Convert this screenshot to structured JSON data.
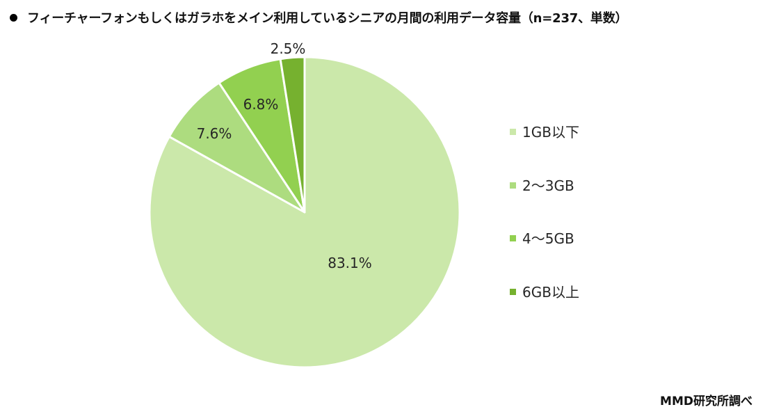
{
  "title": "フィーチャーフォンもしくはガラホをメイン利用しているシニアの月間の利用データ容量（n=237、単数）",
  "source": "MMD研究所調べ",
  "chart_data": {
    "type": "pie",
    "title": "フィーチャーフォンもしくはガラホをメイン利用しているシニアの月間の利用データ容量（n=237、単数）",
    "n": 237,
    "categories": [
      "1GB以下",
      "2〜3GB",
      "4〜5GB",
      "6GB以上"
    ],
    "values": [
      83.1,
      7.6,
      6.8,
      2.5
    ],
    "labels": [
      "83.1%",
      "7.6%",
      "6.8%",
      "2.5%"
    ],
    "colors": [
      "#CBE8AA",
      "#ADDC7F",
      "#92D050",
      "#76B12F"
    ],
    "start_angle": "12 o'clock, clockwise",
    "legend_position": "right"
  },
  "legend": [
    {
      "label": "1GB以下",
      "color": "#CBE8AA"
    },
    {
      "label": "2〜3GB",
      "color": "#ADDC7F"
    },
    {
      "label": "4〜5GB",
      "color": "#92D050"
    },
    {
      "label": "6GB以上",
      "color": "#76B12F"
    }
  ]
}
